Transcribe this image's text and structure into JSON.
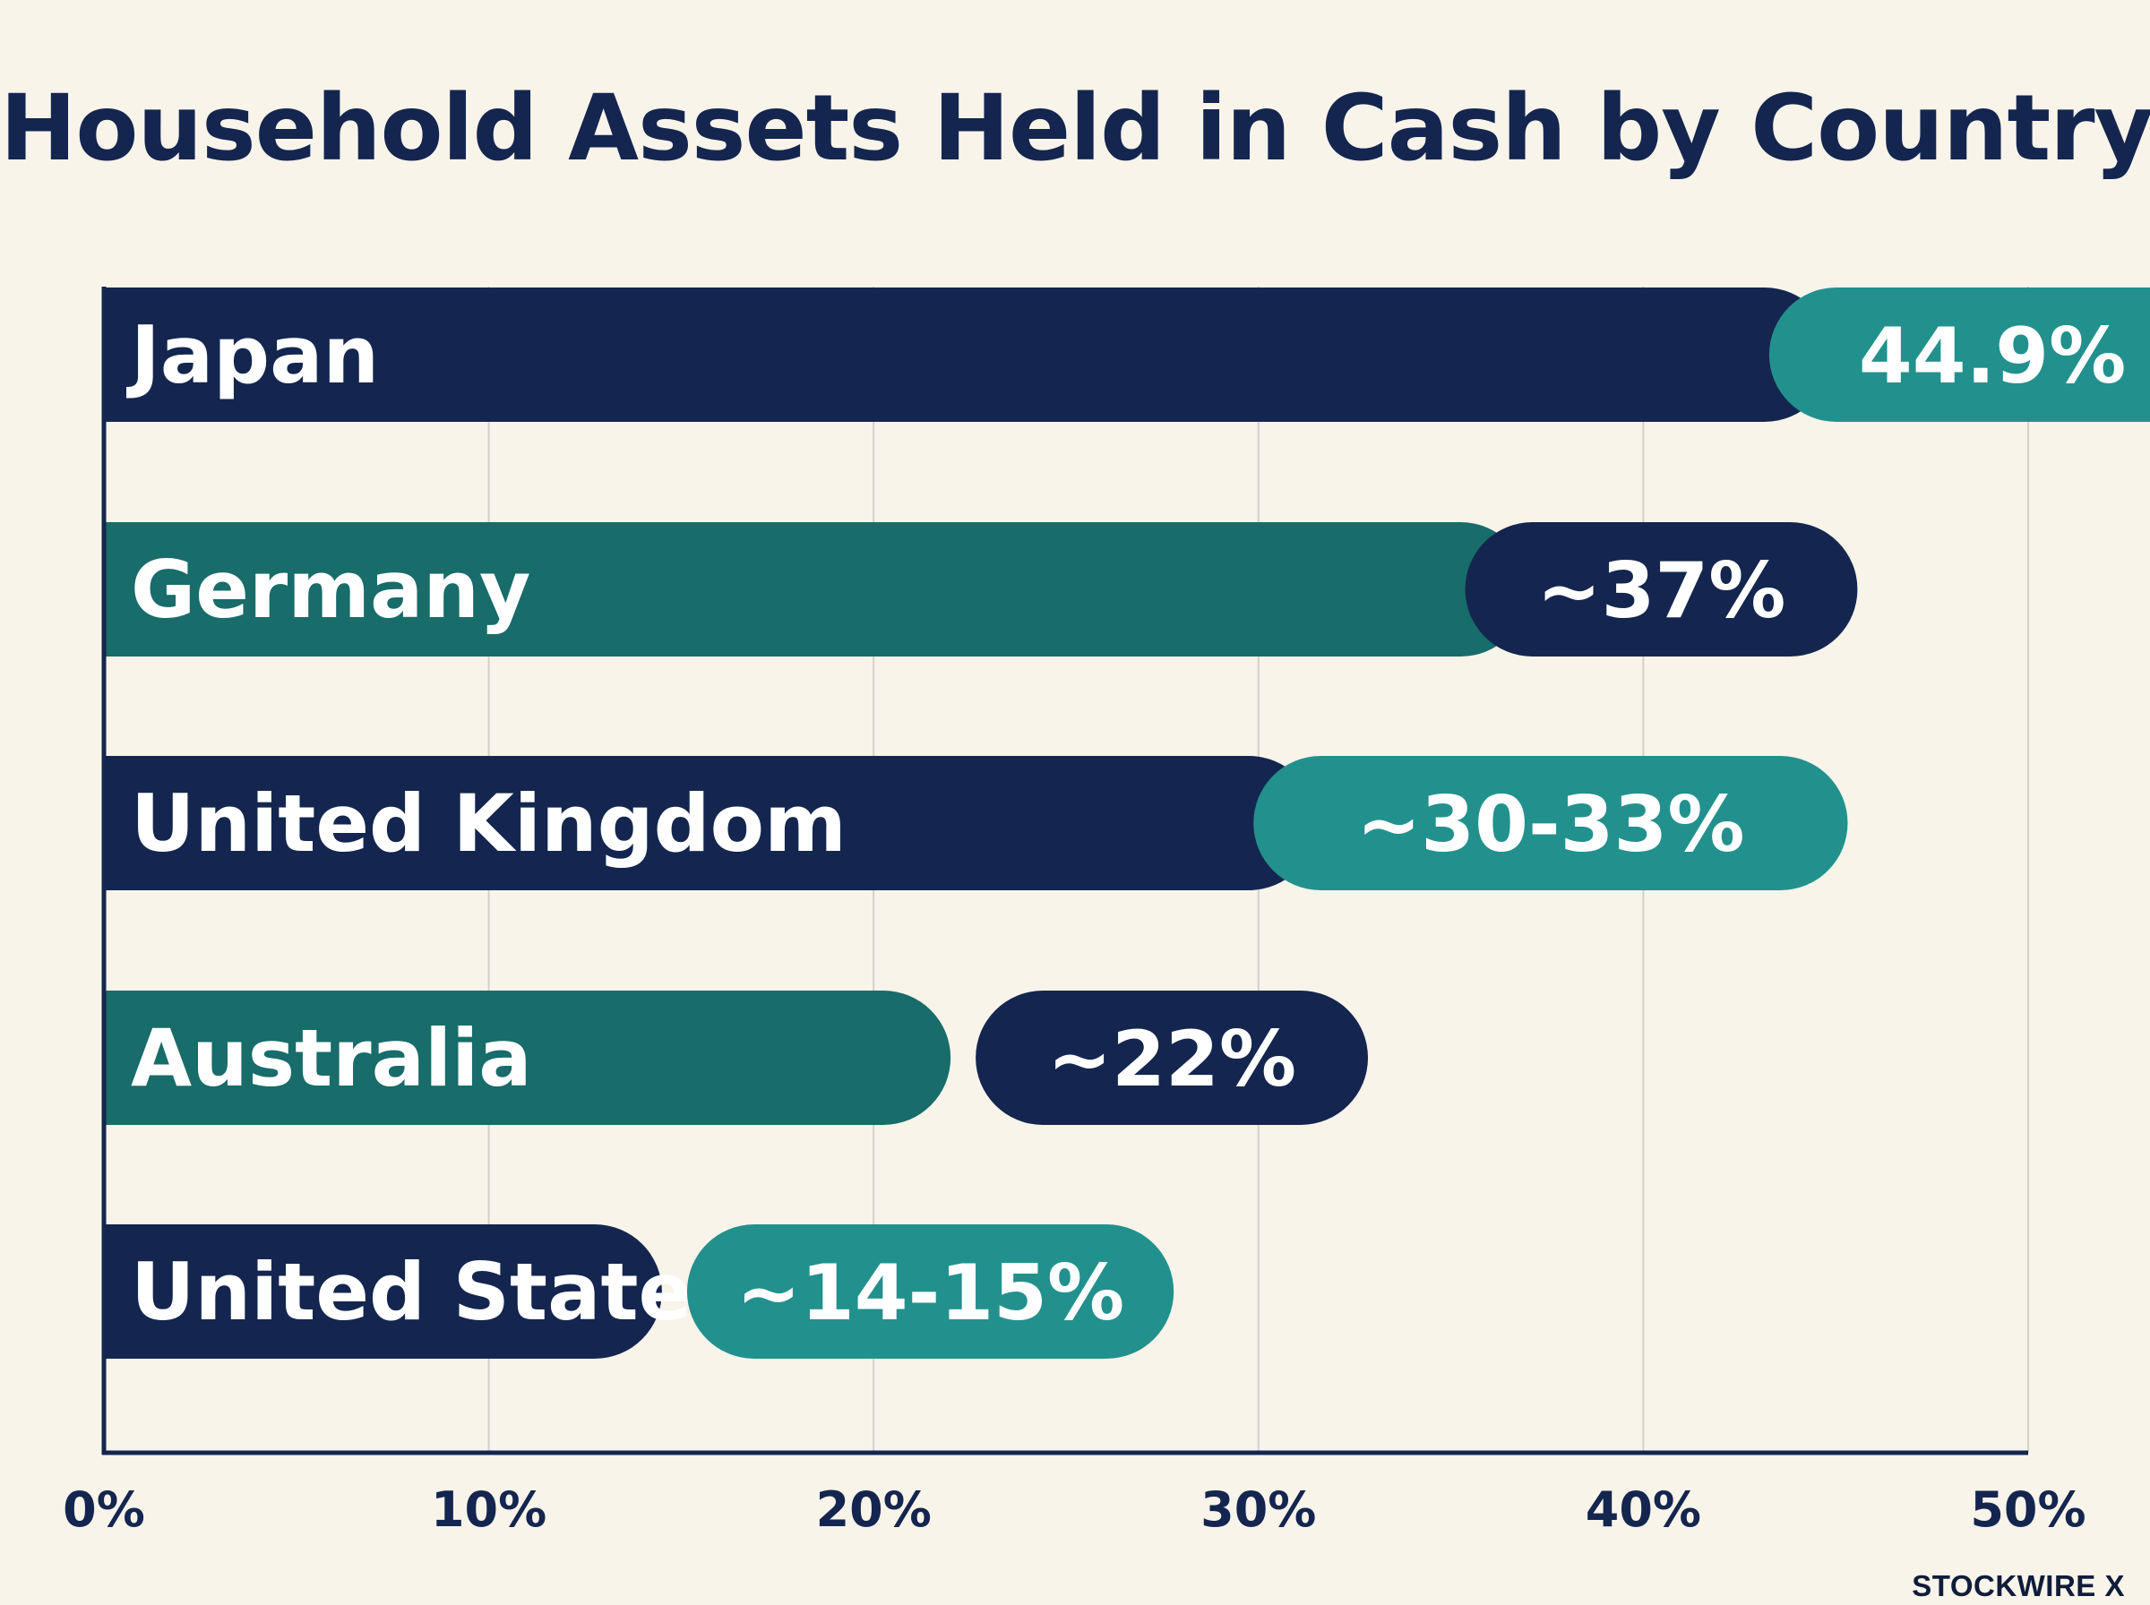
{
  "chart_data": {
    "type": "bar",
    "orientation": "horizontal",
    "title": "Household Assets Held in Cash by Country",
    "categories": [
      "Japan",
      "Germany",
      "United Kingdom",
      "Australia",
      "United States"
    ],
    "values": [
      44.9,
      37,
      31.5,
      22,
      14.5
    ],
    "value_labels": [
      "44.9%",
      "~37%",
      "~30-33%",
      "~22%",
      "~14-15%"
    ],
    "x_ticks": [
      "0%",
      "10%",
      "20%",
      "30%",
      "40%",
      "50%"
    ],
    "xlim": [
      0,
      50
    ],
    "xlabel": "",
    "ylabel": "",
    "grid": true,
    "colors": {
      "navy": "#14264f",
      "teal_bar": "#186c6a",
      "teal_pill": "#22918d",
      "background": "#f8f4ea"
    }
  },
  "brand": "STOCKWIRE X"
}
